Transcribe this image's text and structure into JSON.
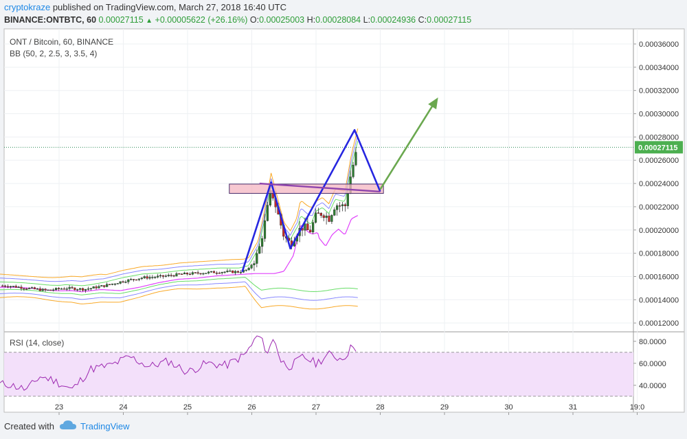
{
  "header": {
    "user": "cryptokraze",
    "published": "published on TradingView.com, March 27, 2018 16:40 UTC",
    "symbol": "BINANCE:ONTBTC, 60",
    "last": "0.00027115",
    "change": "+0.00005622 (+26.16%)",
    "o_label": "O:",
    "o": "0.00025003",
    "h_label": "H:",
    "h": "0.00028084",
    "l_label": "L:",
    "l": "0.00024936",
    "c_label": "C:",
    "c": "0.00027115"
  },
  "pane_labels": {
    "title": "ONT / Bitcoin, 60, BINANCE",
    "bb": "BB (50, 2, 2.5, 3, 3.5, 4)",
    "rsi": "RSI (14, close)",
    "price_tag": "0.00027115"
  },
  "footer": {
    "created": "Created with",
    "brand": "TradingView"
  },
  "colors": {
    "candle_up": "#2e7d32",
    "candle_down": "#c62828",
    "bb_basis": "#e040fb",
    "bb_1": "#66dd66",
    "bb_2": "#8888ff",
    "bb_3": "#f9a825",
    "rsi_line": "#9c27b0",
    "rsi_fill": "#f3e0fa",
    "pattern": "#2626e0",
    "neckline": "#8e44ad",
    "target_arrow": "#6aa84f",
    "zone_fill": "#f4b6c2",
    "zone_border": "#4a2c6a"
  },
  "chart_data": {
    "type": "candlestick",
    "x_axis": {
      "ticks": [
        "23",
        "24",
        "25",
        "26",
        "27",
        "28",
        "29",
        "30",
        "31",
        "19:0"
      ]
    },
    "price_axis": {
      "ylim": [
        0.000113,
        0.000373
      ],
      "ticks": [
        "0.00012000",
        "0.00014000",
        "0.00016000",
        "0.00018000",
        "0.00020000",
        "0.00022000",
        "0.00024000",
        "0.00026000",
        "0.00028000",
        "0.00030000",
        "0.00032000",
        "0.00034000",
        "0.00036000"
      ]
    },
    "rsi_axis": {
      "ylim": [
        28,
        88
      ],
      "ticks": [
        "40.0000",
        "60.0000",
        "80.0000"
      ],
      "bands": [
        30,
        70
      ]
    },
    "last_price": 0.00027115,
    "price_path_days": [
      [
        22.2,
        0.000152
      ],
      [
        22.5,
        0.00015
      ],
      [
        22.8,
        0.000148
      ],
      [
        23.1,
        0.00015
      ],
      [
        23.4,
        0.000149
      ],
      [
        23.7,
        0.000152
      ],
      [
        24.0,
        0.000156
      ],
      [
        24.3,
        0.000159
      ],
      [
        24.6,
        0.00016
      ],
      [
        24.9,
        0.000162
      ],
      [
        25.2,
        0.000163
      ],
      [
        25.5,
        0.000164
      ],
      [
        25.8,
        0.000164
      ],
      [
        25.95,
        0.000166
      ],
      [
        26.1,
        0.00018
      ],
      [
        26.2,
        0.000205
      ],
      [
        26.3,
        0.000235
      ],
      [
        26.4,
        0.000215
      ],
      [
        26.5,
        0.000195
      ],
      [
        26.6,
        0.000188
      ],
      [
        26.7,
        0.000198
      ],
      [
        26.8,
        0.000203
      ],
      [
        26.9,
        0.000198
      ],
      [
        27.0,
        0.000212
      ],
      [
        27.1,
        0.000215
      ],
      [
        27.2,
        0.00021
      ],
      [
        27.3,
        0.000222
      ],
      [
        27.45,
        0.00022
      ],
      [
        27.55,
        0.00025
      ],
      [
        27.65,
        0.000271
      ]
    ],
    "rsi_path_days": [
      [
        22.2,
        41
      ],
      [
        22.5,
        36
      ],
      [
        22.7,
        48
      ],
      [
        22.9,
        45
      ],
      [
        23.2,
        36
      ],
      [
        23.5,
        55
      ],
      [
        23.8,
        58
      ],
      [
        24.1,
        66
      ],
      [
        24.4,
        57
      ],
      [
        24.7,
        62
      ],
      [
        25.0,
        52
      ],
      [
        25.3,
        60
      ],
      [
        25.6,
        58
      ],
      [
        25.9,
        68
      ],
      [
        26.1,
        86
      ],
      [
        26.25,
        70
      ],
      [
        26.35,
        84
      ],
      [
        26.45,
        62
      ],
      [
        26.6,
        57
      ],
      [
        26.8,
        66
      ],
      [
        27.0,
        60
      ],
      [
        27.2,
        68
      ],
      [
        27.4,
        64
      ],
      [
        27.5,
        70
      ],
      [
        27.6,
        79
      ],
      [
        27.65,
        68
      ]
    ],
    "drawings": {
      "zone": {
        "x": [
          25.65,
          28.05
        ],
        "y": [
          0.0002315,
          0.0002395
        ]
      },
      "pattern": [
        [
          25.85,
          0.000164
        ],
        [
          26.3,
          0.000241
        ],
        [
          26.6,
          0.000184
        ],
        [
          27.6,
          0.000286
        ],
        [
          28.0,
          0.000233
        ]
      ],
      "neckline": [
        [
          26.12,
          0.00024
        ],
        [
          28.0,
          0.000233
        ]
      ],
      "target_arrow": [
        [
          28.0,
          0.000235
        ],
        [
          28.9,
          0.000314
        ]
      ]
    }
  }
}
